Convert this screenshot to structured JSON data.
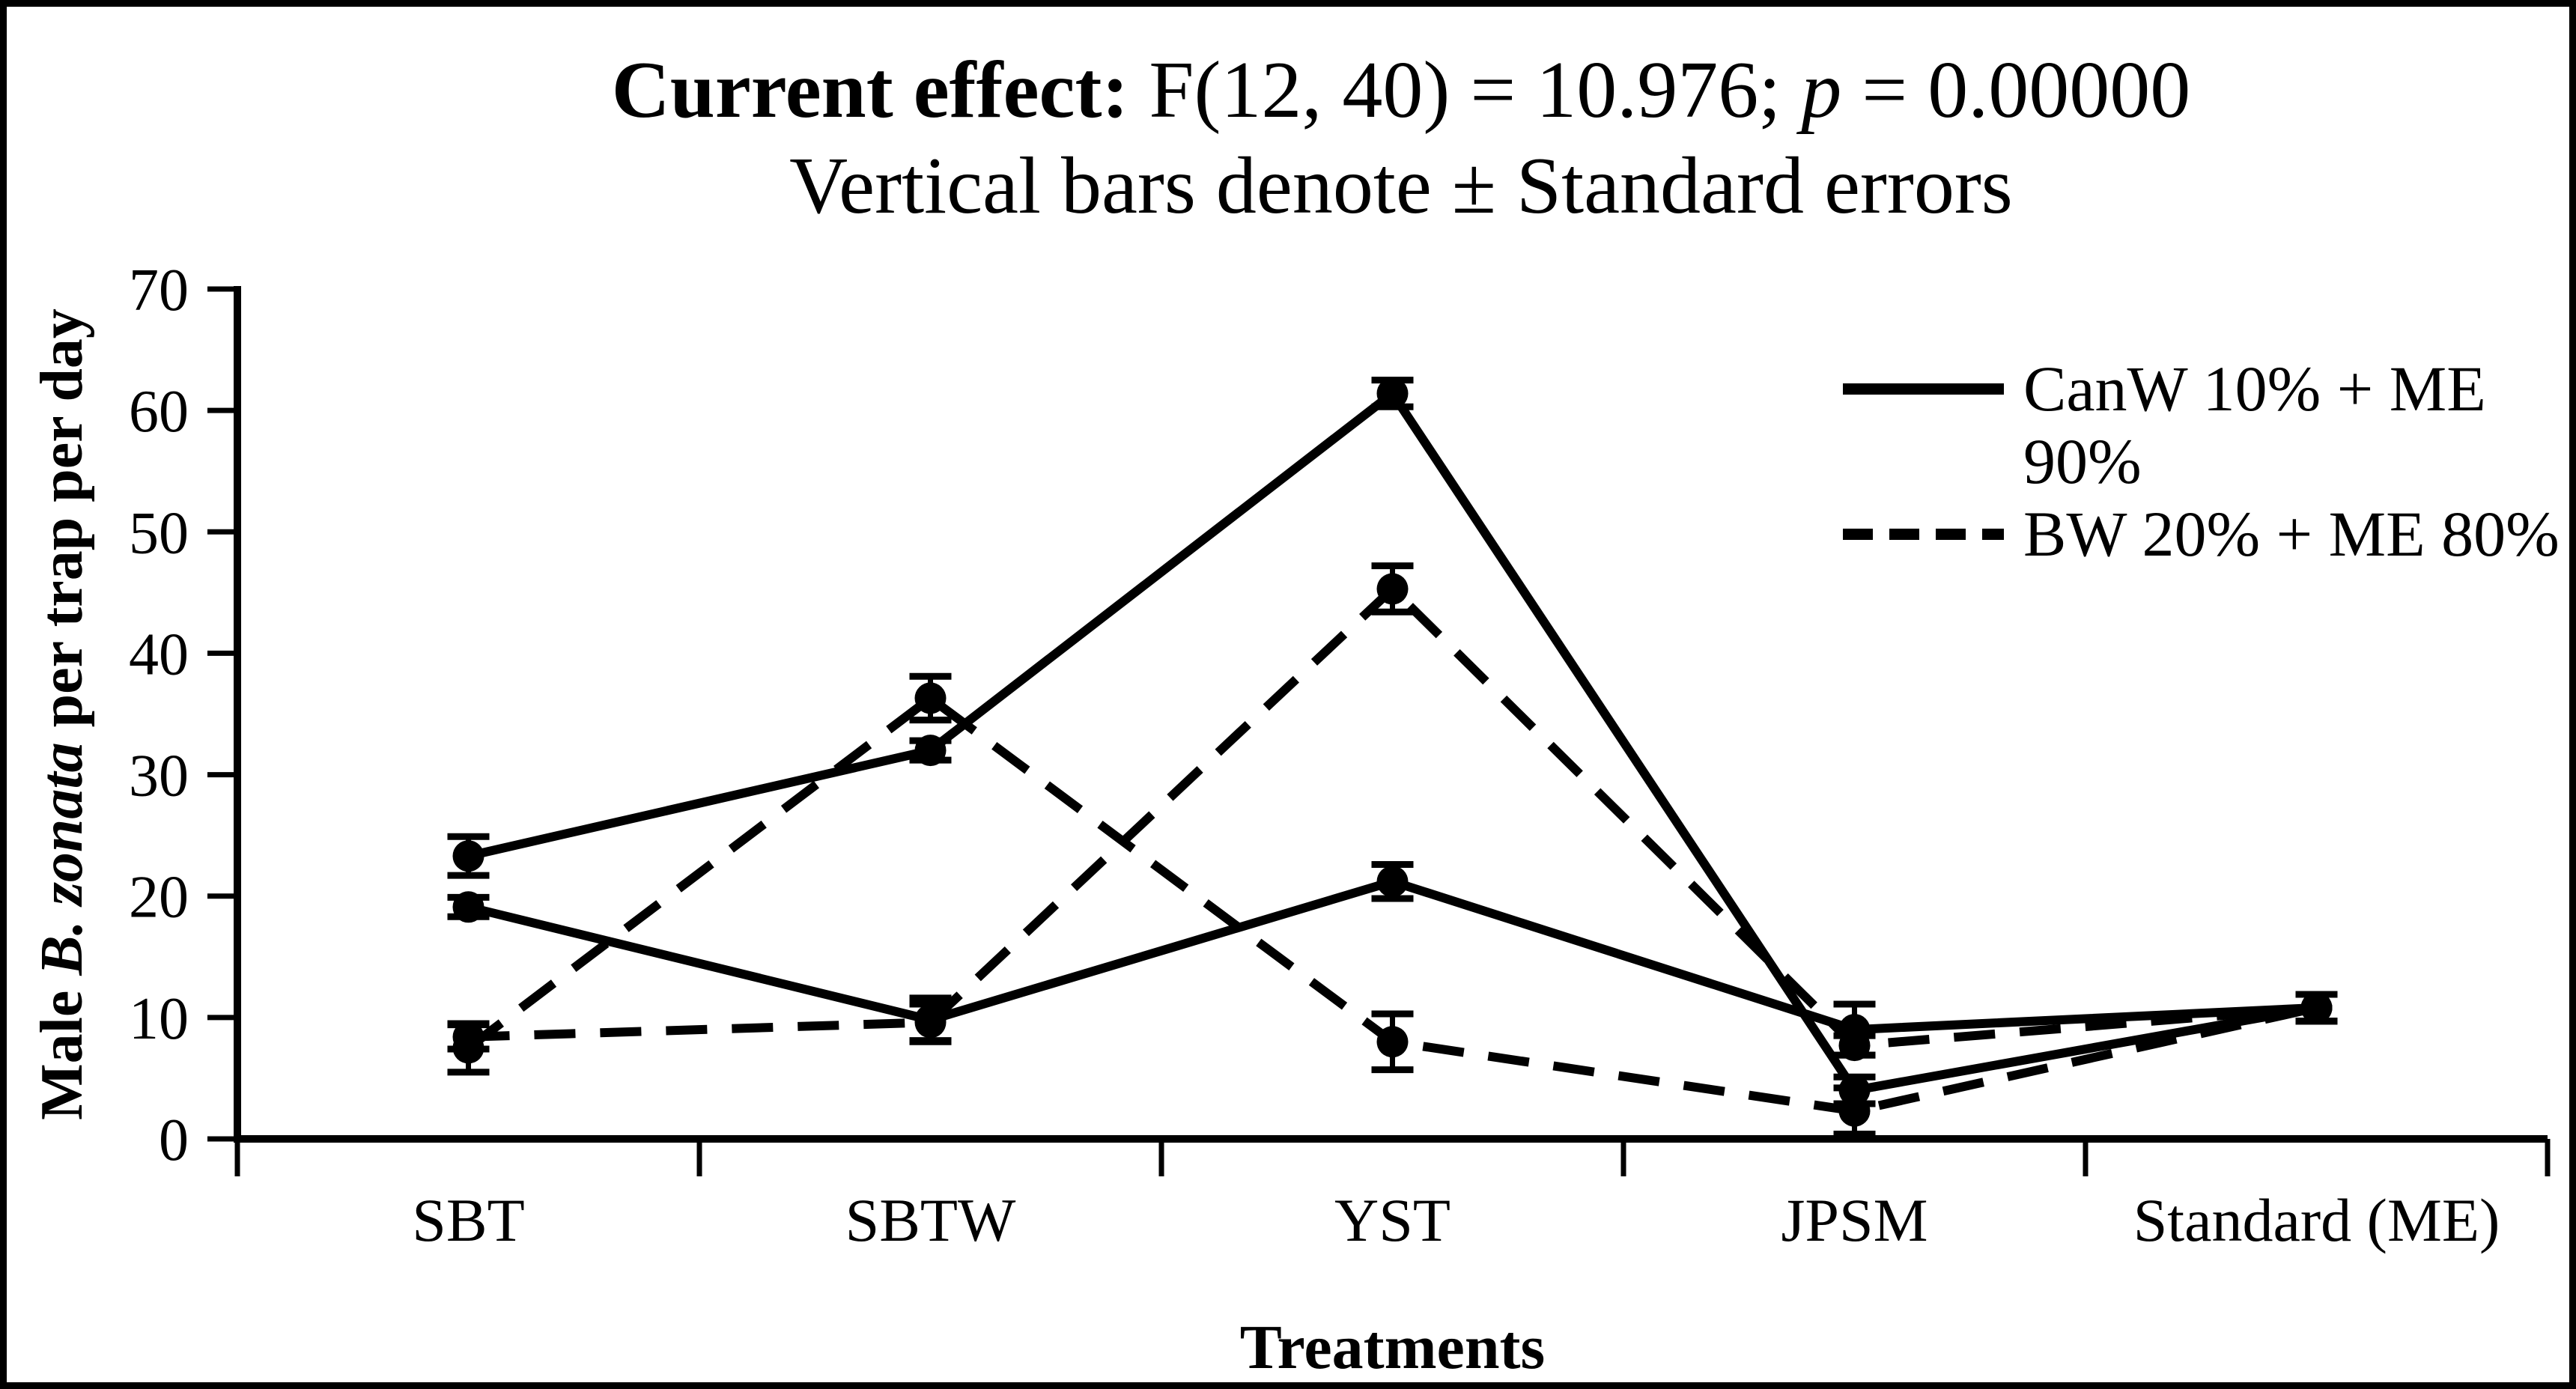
{
  "figure": {
    "title": {
      "bold": "Current effect:",
      "mid": " F(12, 40) = 10.976; ",
      "italic": "p",
      "end": " = 0.00000"
    },
    "subtitle": "Vertical bars denote ± Standard errors",
    "x_axis_title": "Treatments",
    "y_axis_label": {
      "prefix": "Male ",
      "italic": "B. zonata",
      "suffix": " per trap per day"
    }
  },
  "legend": {
    "items": [
      {
        "style": "solid",
        "label": "CanW 10% + ME\n90%"
      },
      {
        "style": "dashed",
        "label": "BW 20% + ME 80%"
      }
    ]
  },
  "chart_data": {
    "type": "line",
    "title": "Current effect: F(12, 40) = 10.976; p = 0.00000",
    "subtitle": "Vertical bars denote ± Standard errors",
    "xlabel": "Treatments",
    "ylabel": "Male B. zonata per trap per day",
    "categories": [
      "SBT",
      "SBTW",
      "YST",
      "JPSM",
      "Standard (ME)"
    ],
    "y_ticks": [
      0,
      10,
      20,
      30,
      40,
      50,
      60,
      70
    ],
    "ylim": [
      0,
      70
    ],
    "grid": false,
    "legend_position": "top-right",
    "error_bars": "standard errors",
    "series": [
      {
        "name": "CanW 10% + ME 90% (line 1)",
        "style": "solid",
        "values": [
          23.3,
          32.0,
          61.4,
          4.0,
          10.8
        ],
        "errors": [
          1.6,
          0.8,
          1.1,
          1.1,
          1.1
        ]
      },
      {
        "name": "CanW 10% + ME 90% (line 2)",
        "style": "solid",
        "values": [
          19.1,
          9.8,
          21.2,
          9.0,
          10.8
        ],
        "errors": [
          0.8,
          1.8,
          1.4,
          2.1,
          1.1
        ]
      },
      {
        "name": "BW 20% + ME 80% (line 1)",
        "style": "dashed",
        "values": [
          7.5,
          36.3,
          8.0,
          2.3,
          10.8
        ],
        "errors": [
          2.0,
          1.8,
          2.3,
          1.9,
          1.1
        ]
      },
      {
        "name": "BW 20% + ME 80% (line 2)",
        "style": "dashed",
        "values": [
          8.4,
          9.6,
          45.3,
          7.7,
          10.8
        ],
        "errors": [
          1.0,
          1.5,
          1.9,
          0.8,
          1.1
        ]
      }
    ]
  }
}
